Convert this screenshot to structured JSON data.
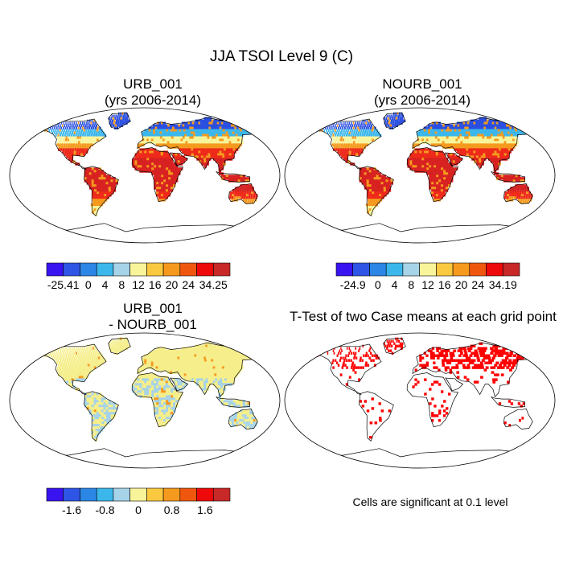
{
  "figure": {
    "title": "JJA TSOI Level 9 (C)"
  },
  "panels": [
    {
      "id": "urb",
      "title1": "URB_001",
      "title2": "(yrs 2006-2014)"
    },
    {
      "id": "nourb",
      "title1": "NOURB_001",
      "title2": "(yrs 2006-2014)"
    },
    {
      "id": "diff",
      "title1": "URB_001",
      "title2": "- NOURB_001"
    },
    {
      "id": "ttest",
      "title1": "T-Test of two Case means at each grid point"
    }
  ],
  "colorbars": [
    {
      "id": "urb",
      "colors": [
        "#3a14f0",
        "#2f55e6",
        "#2b86e6",
        "#3bb7ec",
        "#a6d3e8",
        "#f8f49a",
        "#fbc93f",
        "#f59a1e",
        "#f0570e",
        "#ee0a0a",
        "#c82828"
      ],
      "labels": [
        "-25.41",
        "0",
        "4",
        "8",
        "12",
        "16",
        "20",
        "24",
        "34.25"
      ]
    },
    {
      "id": "nourb",
      "colors": [
        "#3a14f0",
        "#2f55e6",
        "#2b86e6",
        "#3bb7ec",
        "#a6d3e8",
        "#f8f49a",
        "#fbc93f",
        "#f59a1e",
        "#f0570e",
        "#ee0a0a",
        "#c82828"
      ],
      "labels": [
        "-24.9",
        "0",
        "4",
        "8",
        "12",
        "16",
        "20",
        "24",
        "34.19"
      ]
    },
    {
      "id": "diff",
      "colors": [
        "#3a14f0",
        "#2f55e6",
        "#2b86e6",
        "#3bb7ec",
        "#a6d3e8",
        "#f8f49a",
        "#fbc93f",
        "#f59a1e",
        "#f0570e",
        "#ee0a0a",
        "#c82828"
      ],
      "labels": [
        "-1.6",
        "-0.8",
        "0",
        "0.8",
        "1.6"
      ]
    }
  ],
  "note": "Cells are significant at 0.1 level",
  "palette": {
    "cold": "#2b4fe0",
    "cool": "#3bb7ec",
    "mild": "#f8f49a",
    "warm": "#f59a1e",
    "hot": "#ee2a1a",
    "very_hot": "#d82222",
    "diff_pos": "#f5ee8a",
    "diff_neg": "#a6d3e8",
    "sig": "#ff0000"
  }
}
